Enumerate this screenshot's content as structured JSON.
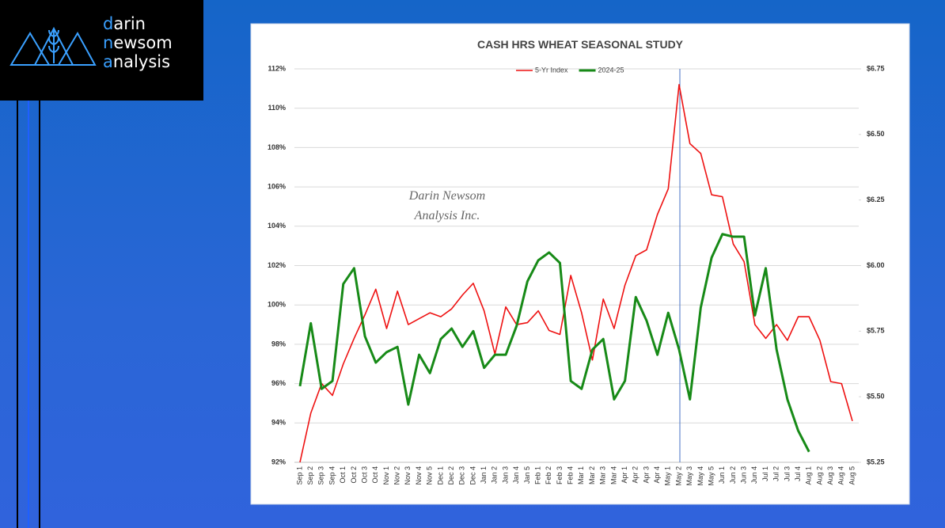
{
  "logo": {
    "lines": [
      "darin",
      "newsom",
      "analysis"
    ]
  },
  "chart_data": {
    "type": "line",
    "title": "CASH HRS WHEAT SEASONAL STUDY",
    "annotations": [
      "Darin Newsom",
      "Analysis Inc."
    ],
    "legend": "top",
    "grid": true,
    "categories": [
      "Sep 1",
      "Sep 2",
      "Sep 3",
      "Sep 4",
      "Oct 1",
      "Oct 2",
      "Oct 3",
      "Oct 4",
      "Nov 1",
      "Nov 2",
      "Nov 3",
      "Nov 4",
      "Nov 5",
      "Dec 1",
      "Dec 2",
      "Dec 3",
      "Dec 4",
      "Jan 1",
      "Jan 2",
      "Jan 3",
      "Jan 4",
      "Jan 5",
      "Feb 1",
      "Feb 2",
      "Feb 3",
      "Feb 4",
      "Mar 1",
      "Mar 2",
      "Mar 3",
      "Mar 4",
      "Apr 1",
      "Apr 2",
      "Apr 3",
      "Apr 4",
      "May 1",
      "May 2",
      "May 3",
      "May 4",
      "May 5",
      "Jun 1",
      "Jun 2",
      "Jun 3",
      "Jun 4",
      "Jul 1",
      "Jul 2",
      "Jul 3",
      "Jul 4",
      "Aug 1",
      "Aug 2",
      "Aug 3",
      "Aug 4",
      "Aug 5"
    ],
    "ylim": [
      92,
      112
    ],
    "yticks": [
      {
        "value": 92,
        "label": "92%"
      },
      {
        "value": 94,
        "label": "94%"
      },
      {
        "value": 96,
        "label": "96%"
      },
      {
        "value": 98,
        "label": "98%"
      },
      {
        "value": 100,
        "label": "100%"
      },
      {
        "value": 102,
        "label": "102%"
      },
      {
        "value": 104,
        "label": "104%"
      },
      {
        "value": 106,
        "label": "106%"
      },
      {
        "value": 108,
        "label": "108%"
      },
      {
        "value": 110,
        "label": "110%"
      },
      {
        "value": 112,
        "label": "112%"
      }
    ],
    "y2lim": [
      5.25,
      6.75
    ],
    "y2ticks": [
      {
        "value": 5.25,
        "label": "$5.25"
      },
      {
        "value": 5.5,
        "label": "$5.50"
      },
      {
        "value": 5.75,
        "label": "$5.75"
      },
      {
        "value": 6,
        "label": "$6.00"
      },
      {
        "value": 6.25,
        "label": "$6.25"
      },
      {
        "value": 6.5,
        "label": "$6.50"
      },
      {
        "value": 6.75,
        "label": "$6.75"
      }
    ],
    "series": [
      {
        "name": "5-Yr Index",
        "color": "#ee1111",
        "width": 1.6,
        "values": [
          92.0,
          94.5,
          96.0,
          95.4,
          97.0,
          98.3,
          99.5,
          100.8,
          98.8,
          100.7,
          99.0,
          99.3,
          99.6,
          99.4,
          99.8,
          100.5,
          101.1,
          99.7,
          97.5,
          99.9,
          99.0,
          99.1,
          99.7,
          98.7,
          98.5,
          101.5,
          99.6,
          97.2,
          100.3,
          98.8,
          101.0,
          102.5,
          102.8,
          104.6,
          105.9,
          111.2,
          108.2,
          107.7,
          105.6,
          105.5,
          103.1,
          102.2,
          99.0,
          98.3,
          99.0,
          98.2,
          99.4,
          99.4,
          98.2,
          96.1,
          96.0,
          94.1
        ]
      },
      {
        "name": "2024-25",
        "color": "#178a17",
        "width": 3,
        "axis": "y2",
        "values": [
          5.54,
          5.78,
          5.53,
          5.56,
          5.93,
          5.99,
          5.73,
          5.63,
          5.67,
          5.69,
          5.47,
          5.66,
          5.59,
          5.72,
          5.76,
          5.69,
          5.75,
          5.61,
          5.66,
          5.66,
          5.77,
          5.94,
          6.02,
          6.05,
          6.01,
          5.56,
          5.53,
          5.68,
          5.72,
          5.49,
          5.56,
          5.88,
          5.79,
          5.66,
          5.82,
          5.68,
          5.49,
          5.84,
          6.03,
          6.12,
          6.11,
          6.11,
          5.81,
          5.99,
          5.68,
          5.49,
          5.37,
          5.29,
          null,
          null,
          null,
          null
        ]
      }
    ]
  }
}
